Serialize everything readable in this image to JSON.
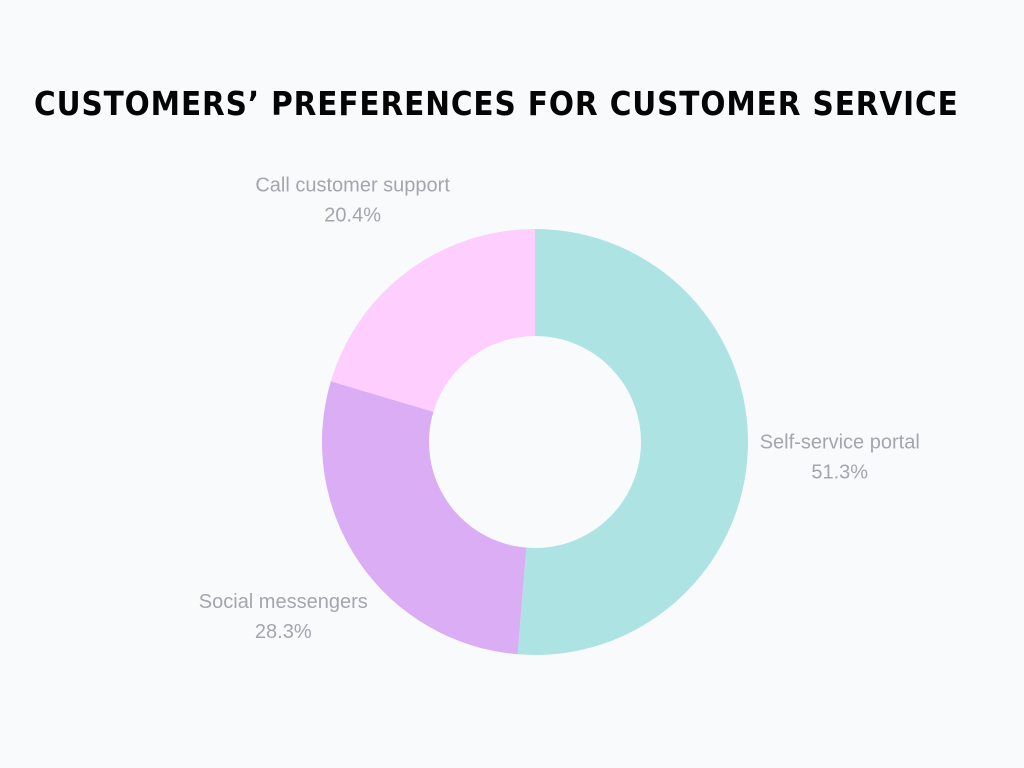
{
  "page": {
    "background": "#f8fafc"
  },
  "chart_data": {
    "type": "pie",
    "donut": true,
    "title": "CUSTOMERS’ PREFERENCES FOR CUSTOMER SERVICE",
    "slices": [
      {
        "label": "Self-service portal",
        "value": 51.3,
        "display": "51.3%",
        "color": "#ade4e3"
      },
      {
        "label": "Social messengers",
        "value": 28.3,
        "display": "28.3%",
        "color": "#dbadf5"
      },
      {
        "label": "Call customer support",
        "value": 20.4,
        "display": "20.4%",
        "color": "#fdcefe"
      }
    ],
    "start_angle_deg": 0,
    "direction": "clockwise",
    "label_color": "#a3a6ad"
  }
}
